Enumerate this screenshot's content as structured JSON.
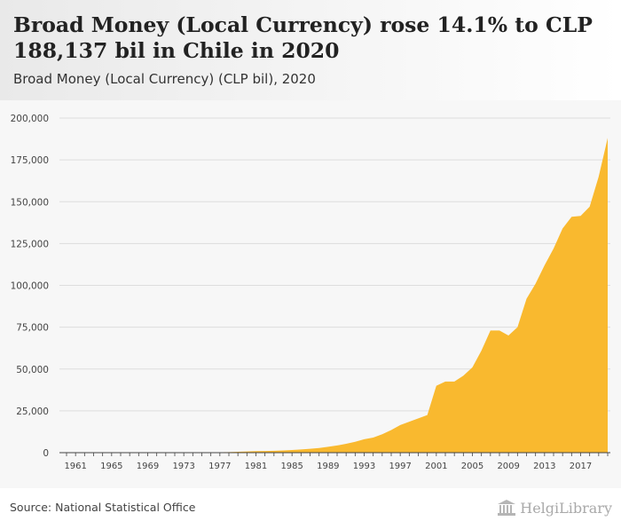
{
  "header": {
    "title": "Broad Money (Local Currency) rose 14.1% to CLP 188,137 bil in Chile in 2020",
    "subtitle": "Broad Money (Local Currency) (CLP bil), 2020"
  },
  "footer": {
    "source": "Source: National Statistical Office",
    "logo_text": "HelgiLibrary"
  },
  "colors": {
    "area_fill": "#F9B92F",
    "grid": "#dddddd",
    "axis": "#444444"
  },
  "chart_data": {
    "type": "area",
    "title": "Broad Money (Local Currency) rose 14.1% to CLP 188,137 bil in Chile in 2020",
    "subtitle": "Broad Money (Local Currency) (CLP bil), 2020",
    "xlabel": "",
    "ylabel": "",
    "ylim": [
      0,
      200000
    ],
    "yticks": [
      0,
      25000,
      50000,
      75000,
      100000,
      125000,
      150000,
      175000,
      200000
    ],
    "ytick_labels": [
      "0",
      "25,000",
      "50,000",
      "75,000",
      "100,000",
      "125,000",
      "150,000",
      "175,000",
      "200,000"
    ],
    "xticks": [
      1961,
      1965,
      1969,
      1973,
      1977,
      1981,
      1985,
      1989,
      1993,
      1997,
      2001,
      2005,
      2009,
      2013,
      2017
    ],
    "grid": true,
    "x": [
      1960,
      1961,
      1962,
      1963,
      1964,
      1965,
      1966,
      1967,
      1968,
      1969,
      1970,
      1971,
      1972,
      1973,
      1974,
      1975,
      1976,
      1977,
      1978,
      1979,
      1980,
      1981,
      1982,
      1983,
      1984,
      1985,
      1986,
      1987,
      1988,
      1989,
      1990,
      1991,
      1992,
      1993,
      1994,
      1995,
      1996,
      1997,
      1998,
      1999,
      2000,
      2001,
      2002,
      2003,
      2004,
      2005,
      2006,
      2007,
      2008,
      2009,
      2010,
      2011,
      2012,
      2013,
      2014,
      2015,
      2016,
      2017,
      2018,
      2019,
      2020
    ],
    "series": [
      {
        "values": [
          0,
          0,
          0,
          0,
          0,
          0,
          0,
          0,
          0,
          0,
          0,
          0,
          0,
          0,
          10,
          30,
          80,
          200,
          350,
          500,
          700,
          900,
          1000,
          1100,
          1300,
          1600,
          1900,
          2300,
          2800,
          3500,
          4300,
          5300,
          6500,
          8000,
          9000,
          11000,
          13500,
          16500,
          18500,
          20500,
          22500,
          40000,
          42500,
          42500,
          46000,
          51000,
          61000,
          73000,
          73000,
          70000,
          75000,
          92000,
          101000,
          112000,
          122000,
          134000,
          141000,
          141500,
          147000,
          165000,
          188137
        ]
      }
    ]
  }
}
